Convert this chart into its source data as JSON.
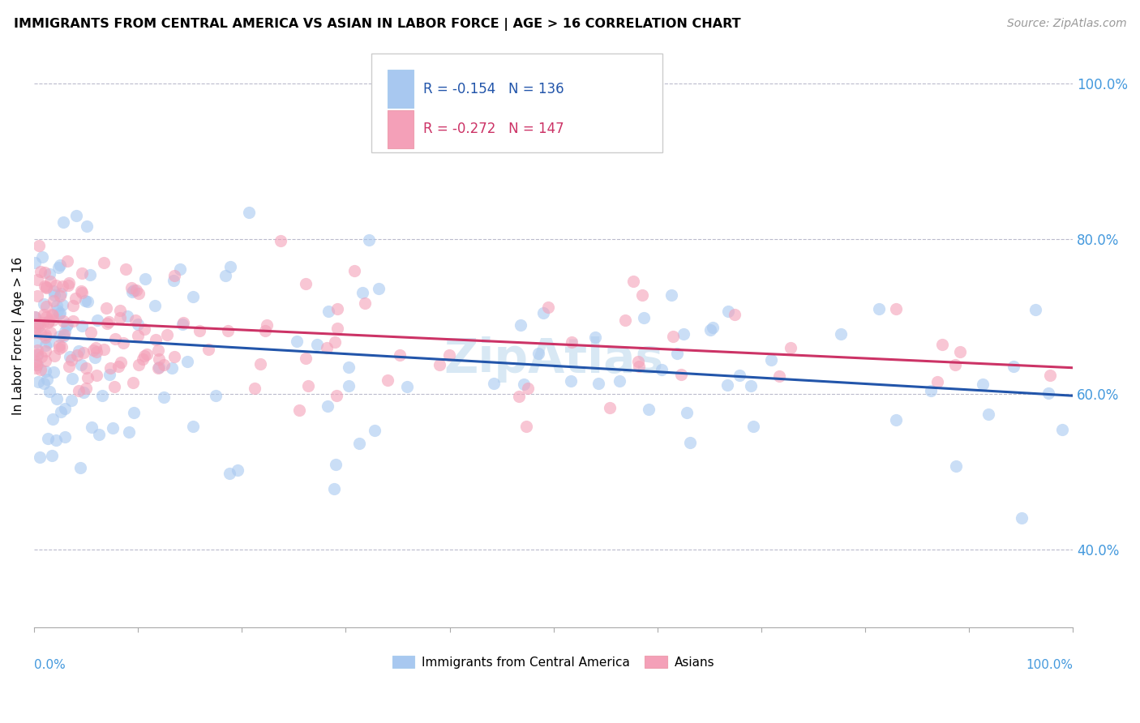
{
  "title": "IMMIGRANTS FROM CENTRAL AMERICA VS ASIAN IN LABOR FORCE | AGE > 16 CORRELATION CHART",
  "source": "Source: ZipAtlas.com",
  "ylabel": "In Labor Force | Age > 16",
  "legend_label1": "Immigrants from Central America",
  "legend_label2": "Asians",
  "legend_r1": "R = -0.154",
  "legend_n1": "N = 136",
  "legend_r2": "R = -0.272",
  "legend_n2": "N = 147",
  "color_blue": "#a8c8f0",
  "color_pink": "#f4a0b8",
  "color_line_blue": "#2255aa",
  "color_line_pink": "#cc3366",
  "color_tick": "#4499dd",
  "watermark_color": "#c8dff0",
  "xlim": [
    0.0,
    1.0
  ],
  "ylim": [
    0.3,
    1.05
  ],
  "yticks": [
    0.4,
    0.6,
    0.8,
    1.0
  ],
  "ytick_labels": [
    "40.0%",
    "60.0%",
    "80.0%",
    "100.0%"
  ],
  "blue_line_start_y": 0.675,
  "blue_line_end_y": 0.598,
  "pink_line_start_y": 0.695,
  "pink_line_end_y": 0.634
}
